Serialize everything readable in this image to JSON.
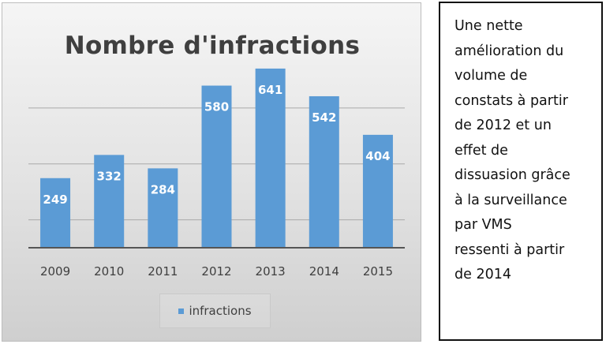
{
  "chart_data": {
    "type": "bar",
    "title": "Nombre d'infractions",
    "categories": [
      "2009",
      "2010",
      "2011",
      "2012",
      "2013",
      "2014",
      "2015"
    ],
    "series": [
      {
        "name": "infractions",
        "values": [
          249,
          332,
          284,
          580,
          641,
          542,
          404
        ]
      }
    ],
    "ylim": [
      0,
      700
    ],
    "grid": true,
    "data_labels": true,
    "legend_position": "bottom",
    "bar_color": "#5b9bd5",
    "label_color": "#ffffff"
  },
  "note": {
    "lines": [
      "Une nette",
      "amélioration du",
      "volume de",
      "constats à partir",
      "de 2012 et un",
      "effet de",
      "dissuasion grâce",
      "à la surveillance",
      "par VMS",
      "ressenti à partir",
      "de 2014"
    ]
  }
}
